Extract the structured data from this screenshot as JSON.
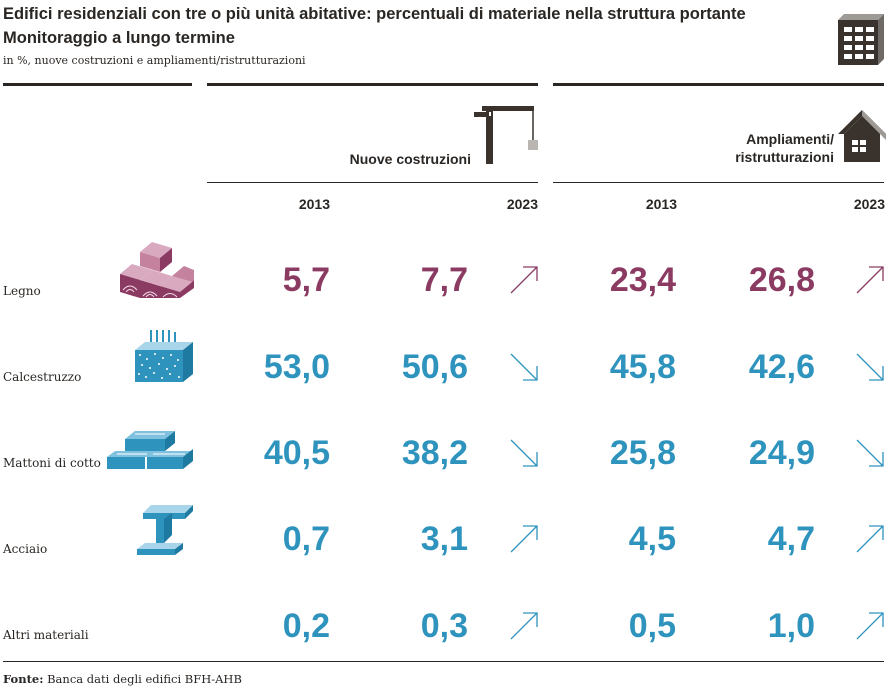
{
  "header": {
    "title": "Edifici residenziali con tre o più unità abitative: percentuali di materiale nella struttura portante",
    "subtitle": "Monitoraggio a lungo termine",
    "unit": "in %, nuove costruzioni e ampliamenti/ristrutturazioni"
  },
  "groups": {
    "new": {
      "label": "Nuove costruzioni",
      "icon": "crane-icon"
    },
    "reno": {
      "label_line1": "Ampliamenti/",
      "label_line2": "ristrutturazioni",
      "icon": "house-icon"
    }
  },
  "years": [
    "2013",
    "2023",
    "2013",
    "2023"
  ],
  "footer": {
    "source_label": "Fonte:",
    "source_text": "Banca dati degli edifici BFH-AHB"
  },
  "chart_data": {
    "type": "table",
    "title": "Edifici residenziali con tre o più unità abitative: percentuali di materiale nella struttura portante",
    "subtitle": "Monitoraggio a lungo termine",
    "unit": "in %",
    "columns": [
      {
        "group": "Nuove costruzioni",
        "year": "2013"
      },
      {
        "group": "Nuove costruzioni",
        "year": "2023"
      },
      {
        "group": "Ampliamenti/ristrutturazioni",
        "year": "2013"
      },
      {
        "group": "Ampliamenti/ristrutturazioni",
        "year": "2023"
      }
    ],
    "rows": [
      {
        "label": "Legno",
        "icon": "wood-icon",
        "color": "#8b3a62",
        "values": [
          "5,7",
          "7,7",
          "23,4",
          "26,8"
        ],
        "trend": [
          "up",
          "up"
        ]
      },
      {
        "label": "Calcestruzzo",
        "icon": "concrete-icon",
        "color": "#2e93bd",
        "values": [
          "53,0",
          "50,6",
          "45,8",
          "42,6"
        ],
        "trend": [
          "down",
          "down"
        ]
      },
      {
        "label": "Mattoni di cotto",
        "icon": "brick-icon",
        "color": "#2e93bd",
        "values": [
          "40,5",
          "38,2",
          "25,8",
          "24,9"
        ],
        "trend": [
          "down",
          "down"
        ]
      },
      {
        "label": "Acciaio",
        "icon": "steel-beam-icon",
        "color": "#2e93bd",
        "values": [
          "0,7",
          "3,1",
          "4,5",
          "4,7"
        ],
        "trend": [
          "up",
          "up"
        ]
      },
      {
        "label": "Altri materiali",
        "icon": "",
        "color": "#2e93bd",
        "values": [
          "0,2",
          "0,3",
          "0,5",
          "1,0"
        ],
        "trend": [
          "up",
          "up"
        ]
      }
    ]
  }
}
